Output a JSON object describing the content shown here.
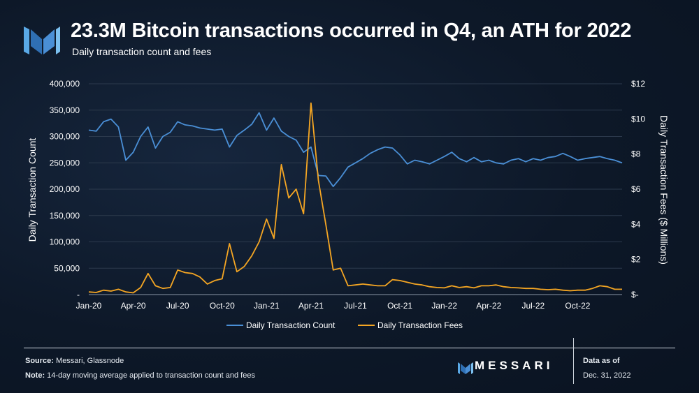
{
  "header": {
    "title": "23.3M Bitcoin transactions occurred in Q4, an ATH for 2022",
    "subtitle": "Daily transaction count and fees"
  },
  "footer": {
    "source_label": "Source:",
    "source_text": "Messari, Glassnode",
    "note_label": "Note:",
    "note_text": "14-day moving average applied to transaction count and fees",
    "brand": "MESSARI",
    "asof_label": "Data as of",
    "asof_date": "Dec. 31, 2022"
  },
  "colors": {
    "count": "#4a8fd6",
    "fees": "#f5a623",
    "grid": "#2c3a4d",
    "axis_text": "#ffffff"
  },
  "chart_data": {
    "type": "line",
    "ylabel_left": "Daily Transaction Count",
    "ylabel_right": "Daily Transaction Fees ($ Millions)",
    "x_ticks": [
      "Jan-20",
      "Apr-20",
      "Jul-20",
      "Oct-20",
      "Jan-21",
      "Apr-21",
      "Jul-21",
      "Oct-21",
      "Jan-22",
      "Apr-22",
      "Jul-22",
      "Oct-22"
    ],
    "y_left_ticks": [
      "-",
      "50,000",
      "100,000",
      "150,000",
      "200,000",
      "250,000",
      "300,000",
      "350,000",
      "400,000"
    ],
    "y_right_ticks": [
      "$-",
      "$2",
      "$4",
      "$6",
      "$8",
      "$10",
      "$12"
    ],
    "ylim_left": [
      0,
      400000
    ],
    "ylim_right": [
      0,
      12
    ],
    "grid": true,
    "legend_position": "bottom",
    "series": [
      {
        "name": "Daily Transaction Count",
        "axis": "left",
        "x": [
          0,
          0.5,
          1,
          1.5,
          2,
          2.5,
          3,
          3.5,
          4,
          4.5,
          5,
          5.5,
          6,
          6.5,
          7,
          7.5,
          8,
          8.5,
          9,
          9.5,
          10,
          10.5,
          11,
          11.5,
          12,
          12.5,
          13,
          13.5,
          14,
          14.5,
          15,
          15.5,
          16,
          16.5,
          17,
          17.5,
          18,
          18.5,
          19,
          19.5,
          20,
          20.5,
          21,
          21.5,
          22,
          22.5,
          23,
          23.5,
          24,
          24.5,
          25,
          25.5,
          26,
          26.5,
          27,
          27.5,
          28,
          28.5,
          29,
          29.5,
          30,
          30.5,
          31,
          31.5,
          32,
          32.5,
          33,
          33.5,
          34,
          34.5,
          35,
          35.5,
          36
        ],
        "values": [
          312000,
          310000,
          328000,
          333000,
          318000,
          255000,
          270000,
          300000,
          318000,
          278000,
          300000,
          308000,
          328000,
          322000,
          320000,
          316000,
          314000,
          312000,
          314000,
          280000,
          302000,
          312000,
          323000,
          345000,
          312000,
          335000,
          310000,
          300000,
          293000,
          270000,
          280000,
          226000,
          225000,
          205000,
          222000,
          242000,
          250000,
          258000,
          268000,
          275000,
          280000,
          278000,
          265000,
          248000,
          255000,
          252000,
          248000,
          255000,
          262000,
          270000,
          258000,
          252000,
          260000,
          252000,
          255000,
          250000,
          248000,
          255000,
          258000,
          252000,
          258000,
          255000,
          260000,
          262000,
          268000,
          262000,
          255000,
          258000,
          260000,
          262000,
          258000,
          255000,
          250000
        ]
      },
      {
        "name": "Daily Transaction Fees",
        "axis": "right",
        "x": [
          0,
          0.5,
          1,
          1.5,
          2,
          2.5,
          3,
          3.5,
          4,
          4.5,
          5,
          5.5,
          6,
          6.5,
          7,
          7.5,
          8,
          8.5,
          9,
          9.5,
          10,
          10.5,
          11,
          11.5,
          12,
          12.5,
          13,
          13.5,
          14,
          14.5,
          15,
          15.5,
          16,
          16.5,
          17,
          17.5,
          18,
          18.5,
          19,
          19.5,
          20,
          20.5,
          21,
          21.5,
          22,
          22.5,
          23,
          23.5,
          24,
          24.5,
          25,
          25.5,
          26,
          26.5,
          27,
          27.5,
          28,
          28.5,
          29,
          29.5,
          30,
          30.5,
          31,
          31.5,
          32,
          32.5,
          33,
          33.5,
          34,
          34.5,
          35,
          35.5,
          36
        ],
        "values": [
          0.15,
          0.12,
          0.25,
          0.2,
          0.3,
          0.15,
          0.1,
          0.4,
          1.2,
          0.5,
          0.35,
          0.4,
          1.4,
          1.25,
          1.2,
          1.0,
          0.6,
          0.8,
          0.9,
          2.9,
          1.3,
          1.6,
          2.2,
          3.0,
          4.3,
          3.2,
          7.4,
          5.5,
          6.0,
          4.6,
          10.9,
          6.5,
          4.0,
          1.4,
          1.5,
          0.5,
          0.55,
          0.6,
          0.55,
          0.5,
          0.5,
          0.85,
          0.8,
          0.7,
          0.6,
          0.55,
          0.45,
          0.4,
          0.38,
          0.5,
          0.4,
          0.45,
          0.38,
          0.5,
          0.5,
          0.55,
          0.45,
          0.4,
          0.38,
          0.35,
          0.35,
          0.3,
          0.28,
          0.3,
          0.25,
          0.22,
          0.25,
          0.25,
          0.35,
          0.5,
          0.45,
          0.3,
          0.3
        ]
      }
    ]
  }
}
